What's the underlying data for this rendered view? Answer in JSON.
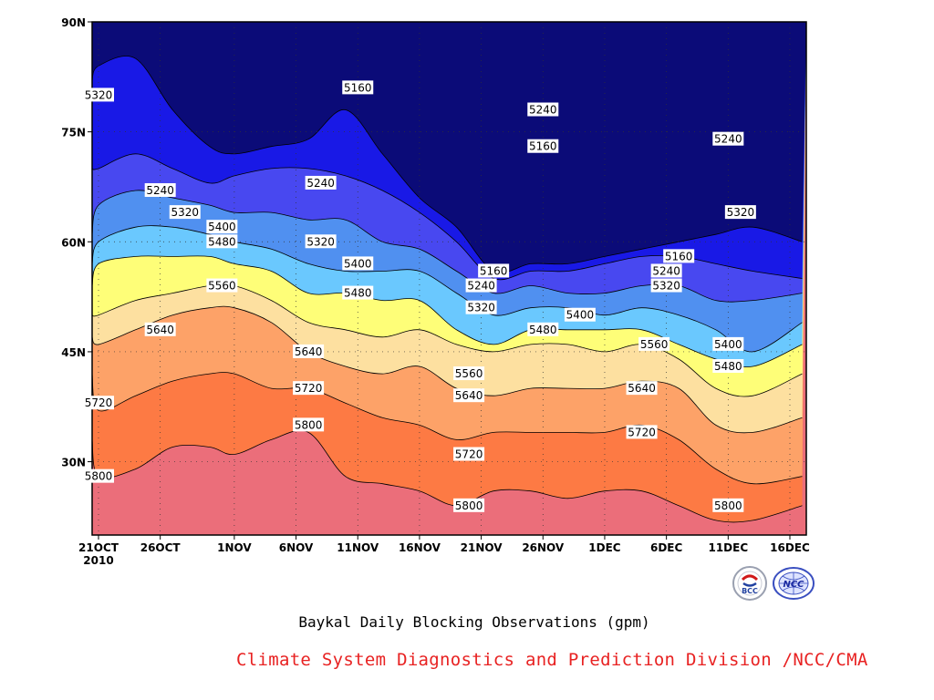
{
  "chart_data": {
    "type": "contour",
    "title": "Baykal Daily Blocking Observations (gpm)",
    "x_ticks": [
      "21OCT\n2010",
      "26OCT",
      "1NOV",
      "6NOV",
      "11NOV",
      "16NOV",
      "21NOV",
      "26NOV",
      "1DEC",
      "6DEC",
      "11DEC",
      "16DEC"
    ],
    "y_ticks": [
      "90N",
      "75N",
      "60N",
      "45N",
      "30N"
    ],
    "x_dates": [
      "2010-10-20",
      "2010-10-21",
      "2010-10-24",
      "2010-10-27",
      "2010-10-30",
      "2010-11-01",
      "2010-11-04",
      "2010-11-07",
      "2010-11-10",
      "2010-11-13",
      "2010-11-16",
      "2010-11-19",
      "2010-11-22",
      "2010-11-25",
      "2010-11-28",
      "2010-12-01",
      "2010-12-04",
      "2010-12-07",
      "2010-12-10",
      "2010-12-13",
      "2010-12-17"
    ],
    "ylim": [
      20,
      90
    ],
    "contour_levels": [
      5160,
      5240,
      5320,
      5400,
      5480,
      5560,
      5640,
      5720,
      5800
    ],
    "fill_colors": [
      "#eb6e7a",
      "#fd7a44",
      "#fda268",
      "#fde0a0",
      "#fefe78",
      "#6ac8fe",
      "#5090f0",
      "#4848f0",
      "#1919e6",
      "#0b0b78"
    ],
    "contour_latitudes": {
      "5800": [
        33,
        28,
        29,
        32,
        32,
        31,
        33,
        34,
        28,
        27,
        26,
        24,
        26,
        26,
        25,
        26,
        26,
        24,
        22,
        22,
        24
      ],
      "5720": [
        42,
        37,
        39,
        41,
        42,
        42,
        40,
        40,
        38,
        36,
        35,
        33,
        34,
        34,
        34,
        34,
        35,
        33,
        29,
        27,
        28
      ],
      "5640": [
        47,
        46,
        48,
        50,
        51,
        51,
        49,
        45,
        43,
        42,
        43,
        40,
        39,
        40,
        40,
        40,
        41,
        40,
        35,
        34,
        36
      ],
      "5560": [
        50,
        50,
        52,
        53,
        54,
        54,
        52,
        49,
        48,
        47,
        48,
        46,
        45,
        46,
        46,
        45,
        46,
        44,
        40,
        39,
        42
      ],
      "5480": [
        54,
        57,
        58,
        58,
        58,
        57,
        56,
        53,
        53,
        52,
        52,
        48,
        46,
        48,
        48,
        48,
        48,
        46,
        44,
        43,
        46
      ],
      "5400": [
        57,
        60,
        62,
        62,
        61,
        60,
        59,
        57,
        56,
        56,
        56,
        53,
        50,
        51,
        51,
        50,
        51,
        50,
        48,
        45,
        49
      ],
      "5320": [
        61,
        65,
        67,
        66,
        65,
        64,
        64,
        63,
        63,
        60,
        59,
        56,
        53,
        54,
        53,
        53,
        54,
        54,
        52,
        52,
        53
      ],
      "5240": [
        70,
        70,
        72,
        70,
        68,
        69,
        70,
        70,
        69,
        67,
        64,
        60,
        55,
        56,
        56,
        57,
        58,
        58,
        57,
        56,
        55
      ],
      "5160": [
        82,
        84,
        85,
        78,
        73,
        72,
        73,
        74,
        78,
        72,
        66,
        62,
        56,
        57,
        57,
        58,
        59,
        60,
        61,
        62,
        60
      ]
    },
    "contour_labels": [
      {
        "level": "5320",
        "date": "2010-10-21",
        "lat": 80
      },
      {
        "level": "5160",
        "date": "2010-11-11",
        "lat": 81
      },
      {
        "level": "5240",
        "date": "2010-11-26",
        "lat": 78
      },
      {
        "level": "5160",
        "date": "2010-11-26",
        "lat": 73
      },
      {
        "level": "5240",
        "date": "2010-12-11",
        "lat": 74
      },
      {
        "level": "5240",
        "date": "2010-10-26",
        "lat": 67
      },
      {
        "level": "5240",
        "date": "2010-11-08",
        "lat": 68
      },
      {
        "level": "5320",
        "date": "2010-10-28",
        "lat": 64
      },
      {
        "level": "5320",
        "date": "2010-12-12",
        "lat": 64
      },
      {
        "level": "5400",
        "date": "2010-10-31",
        "lat": 62
      },
      {
        "level": "5320",
        "date": "2010-11-08",
        "lat": 60
      },
      {
        "level": "5480",
        "date": "2010-10-31",
        "lat": 60
      },
      {
        "level": "5160",
        "date": "2010-11-22",
        "lat": 56
      },
      {
        "level": "5160",
        "date": "2010-12-07",
        "lat": 58
      },
      {
        "level": "5400",
        "date": "2010-11-11",
        "lat": 57
      },
      {
        "level": "5240",
        "date": "2010-12-06",
        "lat": 56
      },
      {
        "level": "5240",
        "date": "2010-11-21",
        "lat": 54
      },
      {
        "level": "5560",
        "date": "2010-10-31",
        "lat": 54
      },
      {
        "level": "5320",
        "date": "2010-12-06",
        "lat": 54
      },
      {
        "level": "5480",
        "date": "2010-11-11",
        "lat": 53
      },
      {
        "level": "5320",
        "date": "2010-11-21",
        "lat": 51
      },
      {
        "level": "5400",
        "date": "2010-11-29",
        "lat": 50
      },
      {
        "level": "5480",
        "date": "2010-11-26",
        "lat": 48
      },
      {
        "level": "5640",
        "date": "2010-10-26",
        "lat": 48
      },
      {
        "level": "5400",
        "date": "2010-12-11",
        "lat": 46
      },
      {
        "level": "5560",
        "date": "2010-12-05",
        "lat": 46
      },
      {
        "level": "5640",
        "date": "2010-11-07",
        "lat": 45
      },
      {
        "level": "5480",
        "date": "2010-12-11",
        "lat": 43
      },
      {
        "level": "5560",
        "date": "2010-11-20",
        "lat": 42
      },
      {
        "level": "5720",
        "date": "2010-11-07",
        "lat": 40
      },
      {
        "level": "5640",
        "date": "2010-12-04",
        "lat": 40
      },
      {
        "level": "5640",
        "date": "2010-11-20",
        "lat": 39
      },
      {
        "level": "5720",
        "date": "2010-10-21",
        "lat": 38
      },
      {
        "level": "5720",
        "date": "2010-12-04",
        "lat": 34
      },
      {
        "level": "5800",
        "date": "2010-11-07",
        "lat": 35
      },
      {
        "level": "5720",
        "date": "2010-11-20",
        "lat": 31
      },
      {
        "level": "5800",
        "date": "2010-10-21",
        "lat": 28
      },
      {
        "level": "5800",
        "date": "2010-11-20",
        "lat": 24
      },
      {
        "level": "5800",
        "date": "2010-12-11",
        "lat": 24
      }
    ]
  },
  "caption": {
    "title": "Baykal Daily Blocking Observations (gpm)",
    "credit": "Climate System Diagnostics and Prediction Division /NCC/CMA"
  },
  "logos": {
    "bcc": "BCC",
    "ncc": "NCC"
  }
}
